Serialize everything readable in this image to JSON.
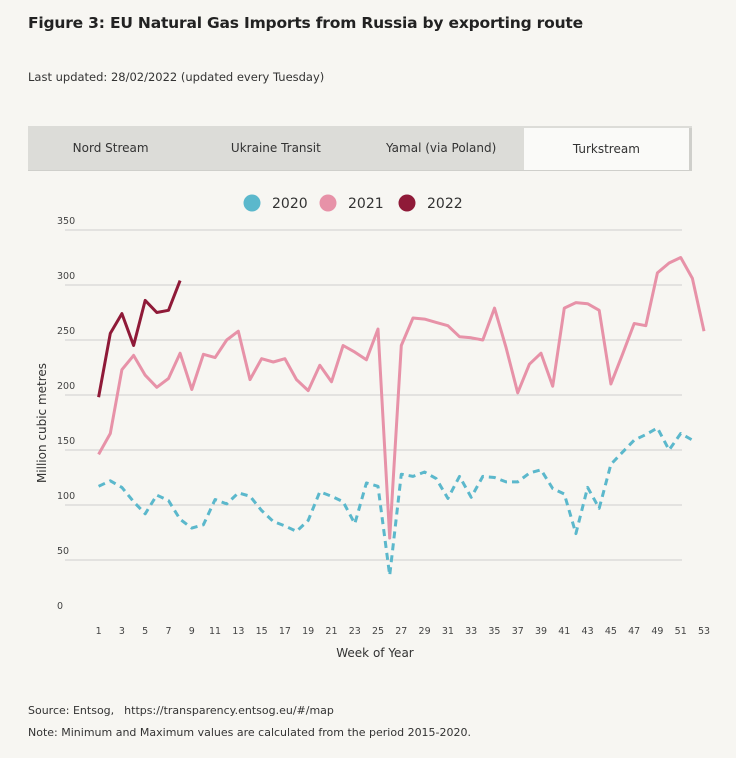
{
  "header": {
    "title": "Figure 3: EU Natural Gas Imports from Russia by exporting route",
    "updated": "Last updated: 28/02/2022 (updated every Tuesday)"
  },
  "tabs": [
    {
      "label": "Nord Stream",
      "active": false
    },
    {
      "label": "Ukraine Transit",
      "active": false
    },
    {
      "label": "Yamal (via Poland)",
      "active": false
    },
    {
      "label": "Turkstream",
      "active": true
    }
  ],
  "footer": {
    "source_label": "Source: Entsog,",
    "source_url": "https://transparency.entsog.eu/#/map",
    "note": "Note: Minimum and Maximum values are calculated from the period 2015-2020."
  },
  "chart_data": {
    "type": "line",
    "title": "",
    "xlabel": "Week of Year",
    "ylabel": "Million cubic metres",
    "xlim": [
      0,
      53
    ],
    "ylim": [
      0,
      350
    ],
    "xticks": [
      1,
      3,
      5,
      7,
      9,
      11,
      13,
      15,
      17,
      19,
      21,
      23,
      25,
      27,
      29,
      31,
      33,
      35,
      37,
      39,
      41,
      43,
      45,
      47,
      49,
      51,
      53
    ],
    "yticks": [
      0,
      50,
      100,
      150,
      200,
      250,
      300,
      350
    ],
    "grid": true,
    "legend_position": "top-center",
    "series": [
      {
        "name": "2020",
        "color": "#5bb8cc",
        "style": "dashed",
        "x": [
          1,
          2,
          3,
          4,
          5,
          6,
          7,
          8,
          9,
          10,
          11,
          12,
          13,
          14,
          15,
          16,
          17,
          18,
          19,
          20,
          21,
          22,
          23,
          24,
          25,
          26,
          27,
          28,
          29,
          30,
          31,
          32,
          33,
          34,
          35,
          36,
          37,
          38,
          39,
          40,
          41,
          42,
          43,
          44,
          45,
          46,
          47,
          48,
          49,
          50,
          51,
          52
        ],
        "values": [
          117,
          122,
          116,
          103,
          92,
          109,
          104,
          87,
          79,
          82,
          105,
          101,
          111,
          108,
          95,
          85,
          81,
          76,
          86,
          112,
          108,
          103,
          83,
          120,
          117,
          36,
          128,
          126,
          130,
          124,
          106,
          126,
          107,
          126,
          125,
          121,
          121,
          129,
          132,
          115,
          110,
          74,
          116,
          97,
          137,
          148,
          159,
          164,
          170,
          150,
          165,
          159
        ]
      },
      {
        "name": "2021",
        "color": "#e792a8",
        "style": "solid",
        "x": [
          1,
          2,
          3,
          4,
          5,
          6,
          7,
          8,
          9,
          10,
          11,
          12,
          13,
          14,
          15,
          16,
          17,
          18,
          19,
          20,
          21,
          22,
          23,
          24,
          25,
          26,
          27,
          28,
          29,
          30,
          31,
          32,
          33,
          34,
          35,
          36,
          37,
          38,
          39,
          40,
          41,
          42,
          43,
          44,
          45,
          46,
          47,
          48,
          49,
          50,
          51,
          52,
          53
        ],
        "values": [
          146,
          165,
          223,
          236,
          218,
          207,
          215,
          238,
          205,
          237,
          234,
          250,
          258,
          214,
          233,
          230,
          233,
          214,
          204,
          227,
          212,
          245,
          239,
          232,
          260,
          70,
          245,
          270,
          269,
          266,
          263,
          253,
          252,
          250,
          279,
          243,
          202,
          228,
          238,
          208,
          279,
          284,
          283,
          277,
          210,
          237,
          265,
          263,
          311,
          320,
          325,
          306,
          258
        ]
      },
      {
        "name": "2022",
        "color": "#8f1a38",
        "style": "solid",
        "x": [
          1,
          2,
          3,
          4,
          5,
          6,
          7,
          8
        ],
        "values": [
          198,
          256,
          274,
          245,
          286,
          275,
          277,
          304
        ]
      }
    ]
  }
}
